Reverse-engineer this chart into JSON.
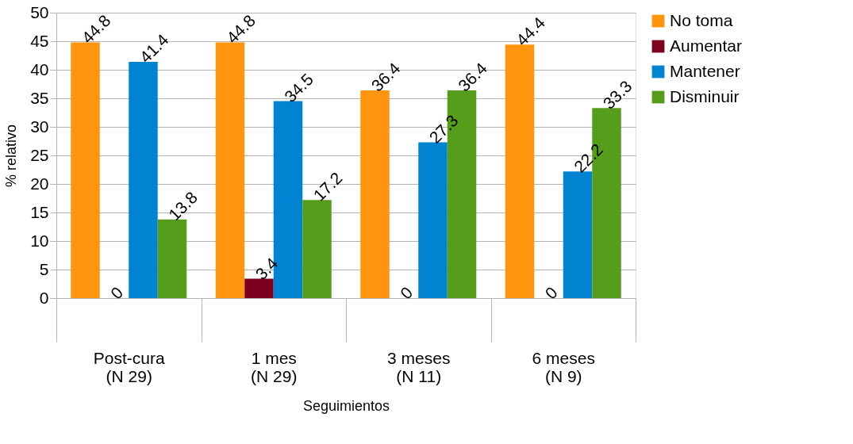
{
  "chart_data": {
    "type": "bar",
    "xlabel": "Seguimientos",
    "ylabel": "% relativo",
    "categories": [
      "Post-cura\n(N 29)",
      "1 mes\n(N 29)",
      "3 meses\n(N 11)",
      "6 meses\n(N 9)"
    ],
    "series": [
      {
        "name": "No toma",
        "color": "#ff950e",
        "values": [
          44.8,
          44.8,
          36.4,
          44.4
        ]
      },
      {
        "name": "Aumentar",
        "color": "#7e0021",
        "values": [
          0,
          3.4,
          0,
          0
        ]
      },
      {
        "name": "Mantener",
        "color": "#0084d1",
        "values": [
          41.4,
          34.5,
          27.3,
          22.2
        ]
      },
      {
        "name": "Disminuir",
        "color": "#579d1c",
        "values": [
          13.8,
          17.2,
          36.4,
          33.3
        ]
      }
    ],
    "ylim": [
      0,
      50
    ],
    "yticks": [
      0,
      5,
      10,
      15,
      20,
      25,
      30,
      35,
      40,
      45,
      50
    ],
    "grid": "y",
    "legend": "right",
    "data_labels": true
  }
}
